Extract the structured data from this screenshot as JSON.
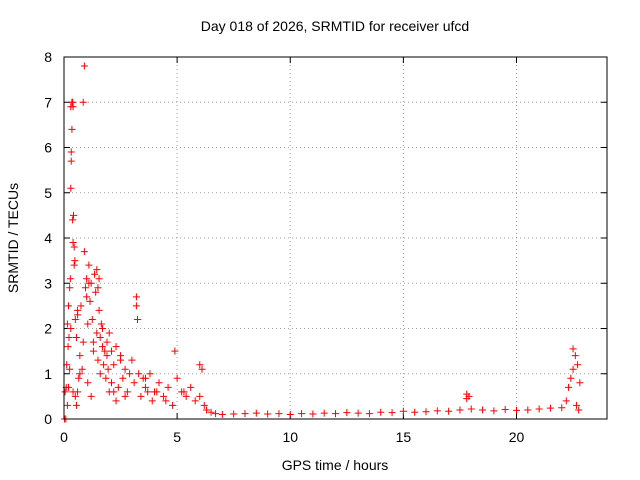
{
  "chart_data": {
    "type": "scatter",
    "title": "Day 018 of 2026, SRMTID for receiver ufcd",
    "xlabel": "GPS time / hours",
    "ylabel": "SRMTID / TECUs",
    "xlim": [
      0,
      24
    ],
    "ylim": [
      0,
      8
    ],
    "x_ticks": [
      0,
      5,
      10,
      15,
      20
    ],
    "y_ticks": [
      0,
      1,
      2,
      3,
      4,
      5,
      6,
      7,
      8
    ],
    "grid": true,
    "marker": "plus",
    "marker_color": "#ff0000",
    "series": [
      {
        "name": "SRMTID",
        "x": [
          0.05,
          0.1,
          0.12,
          0.15,
          0.18,
          0.2,
          0.22,
          0.25,
          0.28,
          0.3,
          0.32,
          0.35,
          0.38,
          0.4,
          0.42,
          0.45,
          0.48,
          0.5,
          0.55,
          0.6,
          0.65,
          0.7,
          0.75,
          0.8,
          0.85,
          0.9,
          0.95,
          1.0,
          1.05,
          1.1,
          1.15,
          1.2,
          1.25,
          1.3,
          1.35,
          1.4,
          1.45,
          1.5,
          1.55,
          1.6,
          1.65,
          1.7,
          1.75,
          1.8,
          1.85,
          1.9,
          1.95,
          2.0,
          2.1,
          2.2,
          2.3,
          2.4,
          2.5,
          2.6,
          2.7,
          2.8,
          2.9,
          3.0,
          3.1,
          3.2,
          3.3,
          3.4,
          3.5,
          3.6,
          3.7,
          3.8,
          3.9,
          4.0,
          4.2,
          4.4,
          4.6,
          4.8,
          5.0,
          5.2,
          5.4,
          5.6,
          5.8,
          6.0,
          6.1,
          6.2,
          6.3,
          6.5,
          6.7,
          7.0,
          7.5,
          8.0,
          8.5,
          9.0,
          9.5,
          10.0,
          10.5,
          11.0,
          11.5,
          12.0,
          12.5,
          13.0,
          13.5,
          14.0,
          14.5,
          15.0,
          15.5,
          16.0,
          16.5,
          17.0,
          17.5,
          17.8,
          18.0,
          18.5,
          19.0,
          19.5,
          20.0,
          20.5,
          21.0,
          21.5,
          22.0,
          22.2,
          22.3,
          22.4,
          22.5,
          22.6,
          22.7,
          22.8,
          0.3,
          0.35,
          0.4,
          0.45,
          0.5,
          0.32,
          0.38,
          0.9,
          0.85,
          0.6,
          0.3,
          0.25,
          1.0,
          1.1,
          1.3,
          1.5,
          1.7,
          1.9,
          2.1,
          2.5,
          3.2,
          3.25,
          1.45,
          1.55,
          0.7,
          0.2,
          0.15,
          0.4,
          0.55,
          1.2,
          2.0,
          2.3,
          2.7,
          4.5,
          4.9,
          5.3,
          6.0,
          22.5,
          22.65,
          22.75,
          17.8,
          17.9,
          0.08,
          0.02,
          0.6,
          1.05,
          1.6,
          2.2,
          3.6,
          4.1
        ],
        "y": [
          0.6,
          0.7,
          1.2,
          2.1,
          1.6,
          2.5,
          1.8,
          2.9,
          3.1,
          5.1,
          5.7,
          6.4,
          7.0,
          6.9,
          4.5,
          3.8,
          3.5,
          0.5,
          1.8,
          2.3,
          0.9,
          1.4,
          2.5,
          1.1,
          1.7,
          3.7,
          2.9,
          2.7,
          2.1,
          3.4,
          2.6,
          3.0,
          2.2,
          1.5,
          3.2,
          2.8,
          1.9,
          1.3,
          2.4,
          1.8,
          2.1,
          1.6,
          1.2,
          1.5,
          0.9,
          1.4,
          1.1,
          1.9,
          0.8,
          1.2,
          1.6,
          0.7,
          1.4,
          0.9,
          1.1,
          0.6,
          1.0,
          1.3,
          0.8,
          2.7,
          1.0,
          0.5,
          0.9,
          0.7,
          0.6,
          1.0,
          0.4,
          0.6,
          0.8,
          0.5,
          0.7,
          0.3,
          0.9,
          0.6,
          0.5,
          0.7,
          0.4,
          0.5,
          1.1,
          0.3,
          0.2,
          0.15,
          0.12,
          0.1,
          0.11,
          0.12,
          0.13,
          0.11,
          0.12,
          0.1,
          0.12,
          0.11,
          0.13,
          0.12,
          0.14,
          0.13,
          0.12,
          0.15,
          0.14,
          0.17,
          0.15,
          0.16,
          0.18,
          0.17,
          0.2,
          0.45,
          0.22,
          0.2,
          0.18,
          0.21,
          0.19,
          0.2,
          0.22,
          0.24,
          0.25,
          0.4,
          0.7,
          0.9,
          1.1,
          1.4,
          1.2,
          0.8,
          6.9,
          7.0,
          3.9,
          3.4,
          2.2,
          5.9,
          4.4,
          7.8,
          7.0,
          2.4,
          2.0,
          1.1,
          3.1,
          3.0,
          1.7,
          2.9,
          2.0,
          1.7,
          1.5,
          1.3,
          2.5,
          2.2,
          3.3,
          3.1,
          1.0,
          0.7,
          0.3,
          0.6,
          0.3,
          0.5,
          0.6,
          0.4,
          0.5,
          0.4,
          1.5,
          0.6,
          1.2,
          1.55,
          0.3,
          0.2,
          0.55,
          0.5,
          0.0,
          0.0,
          0.6,
          0.8,
          1.0,
          0.6,
          0.9,
          0.6
        ]
      }
    ]
  }
}
